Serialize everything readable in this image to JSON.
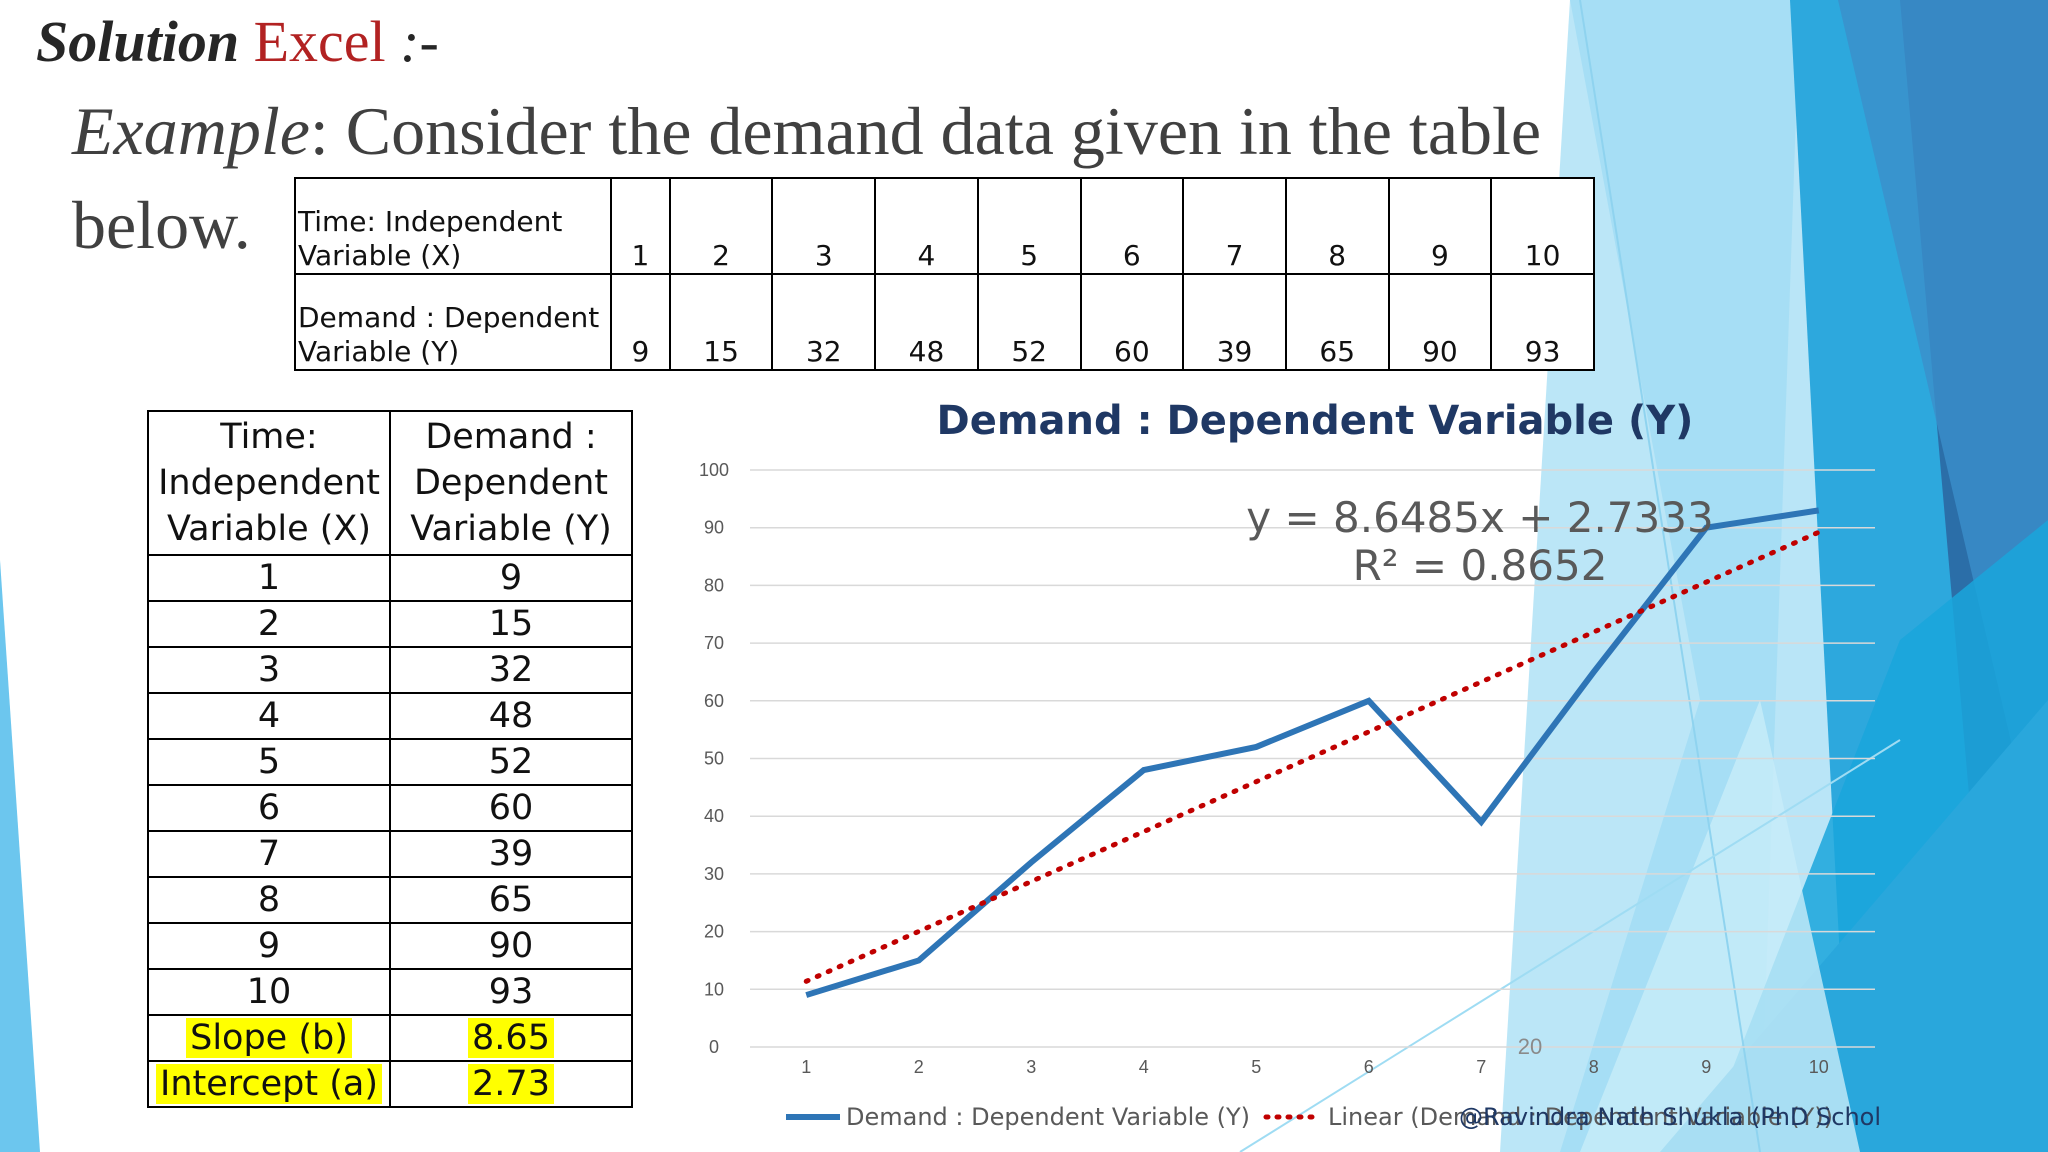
{
  "heading": {
    "solution": "Solution",
    "excel": "Excel",
    "suffix": ":-"
  },
  "example": {
    "label": "Example",
    "text": ": Consider the demand data given in the table",
    "below": "below."
  },
  "top_table": {
    "row1_label": "Time: Independent Variable (X)",
    "row2_label": "Demand : Dependent Variable (Y)",
    "x": [
      "1",
      "2",
      "3",
      "4",
      "5",
      "6",
      "7",
      "8",
      "9",
      "10"
    ],
    "y": [
      "9",
      "15",
      "32",
      "48",
      "52",
      "60",
      "39",
      "65",
      "90",
      "93"
    ]
  },
  "left_table": {
    "header_x": "Time: Independent Variable (X)",
    "header_y": "Demand : Dependent Variable (Y)",
    "rows": [
      [
        "1",
        "9"
      ],
      [
        "2",
        "15"
      ],
      [
        "3",
        "32"
      ],
      [
        "4",
        "48"
      ],
      [
        "5",
        "52"
      ],
      [
        "6",
        "60"
      ],
      [
        "7",
        "39"
      ],
      [
        "8",
        "65"
      ],
      [
        "9",
        "90"
      ],
      [
        "10",
        "93"
      ]
    ],
    "slope_label": "Slope (b)",
    "slope_value": "8.65",
    "intercept_label": "Intercept (a)",
    "intercept_value": "2.73"
  },
  "chart_data": {
    "type": "line",
    "title": "Demand : Dependent Variable (Y)",
    "x": [
      1,
      2,
      3,
      4,
      5,
      6,
      7,
      8,
      9,
      10
    ],
    "series": [
      {
        "name": "Demand : Dependent Variable (Y)",
        "values": [
          9,
          15,
          32,
          48,
          52,
          60,
          39,
          65,
          90,
          93
        ],
        "color": "#2e75b6"
      },
      {
        "name": "Linear (Demand : Dependent Variable (Y))",
        "values": [
          11.38,
          20.03,
          28.68,
          37.33,
          45.98,
          54.62,
          63.27,
          71.92,
          80.57,
          89.22
        ],
        "color": "#c00000",
        "style": "dotted"
      }
    ],
    "ylim": [
      0,
      100
    ],
    "yticks": [
      0,
      10,
      20,
      30,
      40,
      50,
      60,
      70,
      80,
      90,
      100
    ],
    "grid": true,
    "legend": "bottom",
    "trendline_equation": "y = 8.6485x + 2.7333",
    "r_squared": "R² = 0.8652"
  },
  "page_number": "20",
  "footer_credit": "@Ravindra Nath Shukla (PhD Scholar) ABV-IIITM",
  "colors": {
    "title_navy": "#1f3864",
    "heading_red": "#b22222",
    "highlight": "#ffff00"
  }
}
